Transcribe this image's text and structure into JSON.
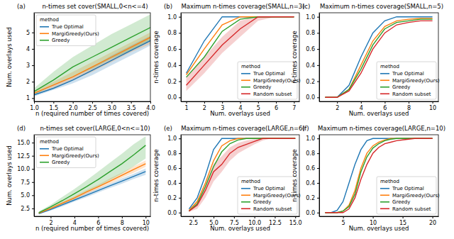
{
  "chart_data": [
    {
      "type": "line",
      "title": "n-times set cover(SMALL,0<n<=4)",
      "annotations": [
        "(a)"
      ],
      "x_label": "n (required number of times covered)",
      "y_label": "Num. overlays used",
      "x": [
        1,
        1.5,
        2,
        2.5,
        3,
        3.5,
        4
      ],
      "xlim": [
        1,
        4
      ],
      "xticks": [
        {
          "value": 1,
          "label": "1.0"
        },
        {
          "value": 1.5,
          "label": "1.5"
        },
        {
          "value": 2,
          "label": "2.0"
        },
        {
          "value": 2.5,
          "label": "2.5"
        },
        {
          "value": 3,
          "label": "3.0"
        },
        {
          "value": 3.5,
          "label": "3.5"
        },
        {
          "value": 4,
          "label": "4.0"
        }
      ],
      "ylim": [
        0.8,
        6.2
      ],
      "yticks": [
        1,
        2,
        3,
        4,
        5
      ],
      "legend": "upper left",
      "legend_title": "method",
      "series": [
        {
          "name": "True Optimal",
          "color": "#1f77b4",
          "values": [
            1.2,
            1.6,
            2.1,
            2.7,
            3.3,
            3.9,
            4.5
          ],
          "lower": [
            1.1,
            1.5,
            1.9,
            2.4,
            3.0,
            3.6,
            4.2
          ],
          "upper": [
            1.3,
            1.8,
            2.3,
            2.9,
            3.6,
            4.2,
            4.8
          ]
        },
        {
          "name": "MargiGreedy(Ours)",
          "color": "#ff7f0e",
          "values": [
            1.3,
            1.8,
            2.3,
            2.9,
            3.5,
            4.1,
            4.7
          ],
          "lower": [
            1.2,
            1.6,
            2.1,
            2.6,
            3.2,
            3.8,
            4.3
          ],
          "upper": [
            1.4,
            2.0,
            2.6,
            3.2,
            3.8,
            4.4,
            5.0
          ]
        },
        {
          "name": "Greedy",
          "color": "#2ca02c",
          "values": [
            1.4,
            2.1,
            2.9,
            3.5,
            4.1,
            4.7,
            5.3
          ],
          "lower": [
            1.2,
            1.8,
            2.3,
            2.8,
            3.4,
            3.9,
            4.5
          ],
          "upper": [
            1.6,
            2.6,
            3.5,
            4.2,
            4.9,
            5.5,
            6.1
          ]
        }
      ]
    },
    {
      "type": "line",
      "title": "Maximum n-times coverage(SMALL,n=3)",
      "annotations": [
        "(b)"
      ],
      "x_label": "Num. overlays used",
      "y_label": "n-times coverage",
      "x": [
        1,
        2,
        3,
        4,
        5,
        6,
        7
      ],
      "xlim": [
        0.7,
        7.3
      ],
      "xticks": [
        1,
        2,
        3,
        4,
        5,
        6,
        7
      ],
      "ylim": [
        -0.05,
        1.05
      ],
      "yticks": [
        {
          "value": 0,
          "label": "0.0"
        },
        {
          "value": 0.2,
          "label": "0.2"
        },
        {
          "value": 0.4,
          "label": "0.4"
        },
        {
          "value": 0.6,
          "label": "0.6"
        },
        {
          "value": 0.8,
          "label": "0.8"
        },
        {
          "value": 1,
          "label": "1.0"
        }
      ],
      "legend": "lower right",
      "legend_title": "method",
      "series": [
        {
          "name": "True Optimal",
          "color": "#1f77b4",
          "values": [
            0.3,
            0.7,
            1,
            1,
            1,
            1,
            1
          ]
        },
        {
          "name": "MargiGreedy(Ours)",
          "color": "#ff7f0e",
          "values": [
            0.28,
            0.6,
            0.9,
            1,
            1,
            1,
            1
          ]
        },
        {
          "name": "Greedy",
          "color": "#2ca02c",
          "values": [
            0.25,
            0.5,
            0.82,
            0.97,
            1,
            1,
            1
          ]
        },
        {
          "name": "Random subset",
          "color": "#d62728",
          "values": [
            0.15,
            0.4,
            0.65,
            0.85,
            1,
            1,
            1
          ],
          "lower": [
            0.08,
            0.3,
            0.55,
            0.75,
            0.95,
            1,
            1
          ],
          "upper": [
            0.25,
            0.5,
            0.75,
            0.95,
            1,
            1,
            1
          ]
        }
      ]
    },
    {
      "type": "line",
      "title": "Maximum n-times coverage(SMALL,n=5)",
      "annotations": [
        "(c)"
      ],
      "x_label": "Num. overlays used",
      "y_label": "n-times coverage",
      "x": [
        1,
        2,
        3,
        4,
        5,
        6,
        7,
        8,
        9,
        10
      ],
      "xlim": [
        0.5,
        10.5
      ],
      "xticks": [
        2,
        4,
        6,
        8,
        10
      ],
      "ylim": [
        -0.05,
        1.05
      ],
      "yticks": [
        {
          "value": 0,
          "label": "0.0"
        },
        {
          "value": 0.2,
          "label": "0.2"
        },
        {
          "value": 0.4,
          "label": "0.4"
        },
        {
          "value": 0.6,
          "label": "0.6"
        },
        {
          "value": 0.8,
          "label": "0.8"
        },
        {
          "value": 1,
          "label": "1.0"
        }
      ],
      "legend": "lower right",
      "legend_title": "method",
      "series": [
        {
          "name": "True Optimal",
          "color": "#1f77b4",
          "values": [
            0,
            0,
            0.15,
            0.5,
            0.8,
            0.95,
            1,
            1,
            1,
            1
          ]
        },
        {
          "name": "MargiGreedy(Ours)",
          "color": "#ff7f0e",
          "values": [
            0,
            0,
            0.1,
            0.4,
            0.7,
            0.88,
            0.95,
            0.97,
            0.98,
            0.98
          ]
        },
        {
          "name": "Greedy",
          "color": "#2ca02c",
          "values": [
            0,
            0,
            0.1,
            0.35,
            0.65,
            0.85,
            0.93,
            0.95,
            0.97,
            0.97
          ]
        },
        {
          "name": "Random subset",
          "color": "#d62728",
          "values": [
            0,
            0,
            0.08,
            0.3,
            0.6,
            0.8,
            0.9,
            0.93,
            0.95,
            0.95
          ]
        }
      ]
    },
    {
      "type": "line",
      "title": "n-times set cover(LARGE,0<n<=10)",
      "annotations": [
        "(d)"
      ],
      "x_label": "n (required number of times covered)",
      "y_label": "Num. overlays used",
      "x": [
        1,
        2,
        3,
        4,
        5,
        6,
        7,
        8,
        9,
        10
      ],
      "xlim": [
        0.6,
        10.4
      ],
      "xticks": [
        2,
        4,
        6,
        8,
        10
      ],
      "ylim": [
        1,
        16.5
      ],
      "yticks": [
        {
          "value": 2.5,
          "label": "2.5"
        },
        {
          "value": 5,
          "label": "5.0"
        },
        {
          "value": 7.5,
          "label": "7.5"
        },
        {
          "value": 10,
          "label": "10.0"
        },
        {
          "value": 12.5,
          "label": "12.5"
        },
        {
          "value": 15,
          "label": "15.0"
        }
      ],
      "legend": "upper left",
      "legend_title": "method",
      "series": [
        {
          "name": "True Optimal",
          "color": "#1f77b4",
          "values": [
            1.5,
            2.3,
            3.2,
            4.1,
            5.0,
            5.9,
            6.8,
            7.7,
            8.6,
            9.5
          ],
          "lower": [
            1.4,
            2.1,
            2.9,
            3.8,
            4.6,
            5.5,
            6.4,
            7.2,
            8.1,
            8.9
          ],
          "upper": [
            1.6,
            2.5,
            3.5,
            4.4,
            5.4,
            6.3,
            7.2,
            8.2,
            9.1,
            10.1
          ]
        },
        {
          "name": "MargiGreedy(Ours)",
          "color": "#ff7f0e",
          "values": [
            1.6,
            2.5,
            3.5,
            4.5,
            5.6,
            6.6,
            7.7,
            8.8,
            9.9,
            11.0
          ],
          "lower": [
            1.5,
            2.3,
            3.2,
            4.2,
            5.2,
            6.2,
            7.2,
            8.3,
            9.3,
            10.4
          ],
          "upper": [
            1.7,
            2.7,
            3.8,
            4.8,
            6.0,
            7.0,
            8.2,
            9.3,
            10.5,
            11.6
          ]
        },
        {
          "name": "Greedy",
          "color": "#2ca02c",
          "values": [
            1.7,
            2.8,
            4.0,
            5.3,
            6.6,
            8.0,
            9.5,
            11.0,
            12.7,
            14.5
          ],
          "lower": [
            1.5,
            2.4,
            3.4,
            4.4,
            5.5,
            6.6,
            7.9,
            9.1,
            10.5,
            12.0
          ],
          "upper": [
            1.9,
            3.2,
            4.7,
            6.2,
            7.8,
            9.5,
            11.2,
            12.9,
            14.7,
            16.2
          ]
        }
      ]
    },
    {
      "type": "line",
      "title": "Maximum n-times coverage(LARGE,n=6)",
      "annotations": [
        "(e)"
      ],
      "x_label": "Num. overlays used",
      "y_label": "n-times coverage",
      "x": [
        2,
        3,
        4,
        5,
        6,
        7,
        8,
        9,
        10,
        11,
        12,
        13,
        14,
        15
      ],
      "xlim": [
        1,
        15.5
      ],
      "xticks": [
        {
          "value": 2.5,
          "label": "2.5"
        },
        {
          "value": 5,
          "label": "5.0"
        },
        {
          "value": 7.5,
          "label": "7.5"
        },
        {
          "value": 10,
          "label": "10.0"
        },
        {
          "value": 12.5,
          "label": "12.5"
        },
        {
          "value": 15,
          "label": "15.0"
        }
      ],
      "ylim": [
        -0.05,
        1.05
      ],
      "yticks": [
        {
          "value": 0,
          "label": "0.0"
        },
        {
          "value": 0.2,
          "label": "0.2"
        },
        {
          "value": 0.4,
          "label": "0.4"
        },
        {
          "value": 0.6,
          "label": "0.6"
        },
        {
          "value": 0.8,
          "label": "0.8"
        },
        {
          "value": 1,
          "label": "1.0"
        }
      ],
      "legend": "lower right",
      "legend_title": "method",
      "series": [
        {
          "name": "True Optimal",
          "color": "#1f77b4",
          "values": [
            0.05,
            0.2,
            0.5,
            0.85,
            1,
            1,
            1,
            1,
            1,
            1,
            1,
            1,
            1,
            1
          ]
        },
        {
          "name": "MargiGreedy(Ours)",
          "color": "#ff7f0e",
          "values": [
            0.03,
            0.15,
            0.4,
            0.7,
            0.9,
            0.97,
            1,
            1,
            1,
            1,
            1,
            1,
            1,
            1
          ]
        },
        {
          "name": "Greedy",
          "color": "#2ca02c",
          "values": [
            0.02,
            0.12,
            0.35,
            0.62,
            0.82,
            0.93,
            0.98,
            1,
            1,
            1,
            1,
            1,
            1,
            1
          ]
        },
        {
          "name": "Random subset",
          "color": "#d62728",
          "values": [
            0.02,
            0.1,
            0.3,
            0.55,
            0.65,
            0.8,
            0.88,
            0.92,
            0.96,
            1,
            1,
            1,
            1,
            1
          ],
          "lower": [
            0.01,
            0.05,
            0.2,
            0.42,
            0.55,
            0.7,
            0.8,
            0.86,
            0.92,
            0.97,
            1,
            1,
            1,
            1
          ],
          "upper": [
            0.04,
            0.16,
            0.4,
            0.66,
            0.76,
            0.88,
            0.94,
            0.97,
            0.99,
            1,
            1,
            1,
            1,
            1
          ]
        }
      ]
    },
    {
      "type": "line",
      "title": "Maximum n-times coverage(LARGE,n=10)",
      "annotations": [
        "(f)"
      ],
      "x_label": "Num. overlays used",
      "y_label": "n-times coverage",
      "x": [
        2,
        3,
        4,
        5,
        6,
        7,
        8,
        9,
        10,
        11,
        12,
        13,
        14,
        15,
        16,
        17,
        18,
        19,
        20
      ],
      "xlim": [
        1,
        21
      ],
      "xticks": [
        5,
        10,
        15,
        20
      ],
      "ylim": [
        -0.05,
        1.05
      ],
      "yticks": [
        {
          "value": 0,
          "label": "0.0"
        },
        {
          "value": 0.2,
          "label": "0.2"
        },
        {
          "value": 0.4,
          "label": "0.4"
        },
        {
          "value": 0.6,
          "label": "0.6"
        },
        {
          "value": 0.8,
          "label": "0.8"
        },
        {
          "value": 1,
          "label": "1.0"
        }
      ],
      "legend": "lower right",
      "legend_title": "method",
      "series": [
        {
          "name": "True Optimal",
          "color": "#1f77b4",
          "values": [
            0,
            0,
            0.03,
            0.15,
            0.4,
            0.65,
            0.85,
            0.97,
            1,
            1,
            1,
            1,
            1,
            1,
            1,
            1,
            1,
            1,
            1
          ]
        },
        {
          "name": "MargiGreedy(Ours)",
          "color": "#ff7f0e",
          "values": [
            0,
            0,
            0,
            0.02,
            0.1,
            0.3,
            0.6,
            0.8,
            0.9,
            0.95,
            0.98,
            1,
            1,
            1,
            1,
            1,
            1,
            1,
            1
          ]
        },
        {
          "name": "Greedy",
          "color": "#2ca02c",
          "values": [
            0,
            0,
            0,
            0.02,
            0.08,
            0.25,
            0.55,
            0.75,
            0.87,
            0.93,
            0.97,
            0.99,
            1,
            1,
            1,
            1,
            1,
            1,
            1
          ]
        },
        {
          "name": "Random subset",
          "color": "#d62728",
          "values": [
            0,
            0,
            0,
            0,
            0.05,
            0.2,
            0.45,
            0.65,
            0.8,
            0.88,
            0.93,
            0.95,
            0.97,
            0.98,
            0.99,
            1,
            1,
            1,
            1
          ]
        }
      ]
    }
  ]
}
